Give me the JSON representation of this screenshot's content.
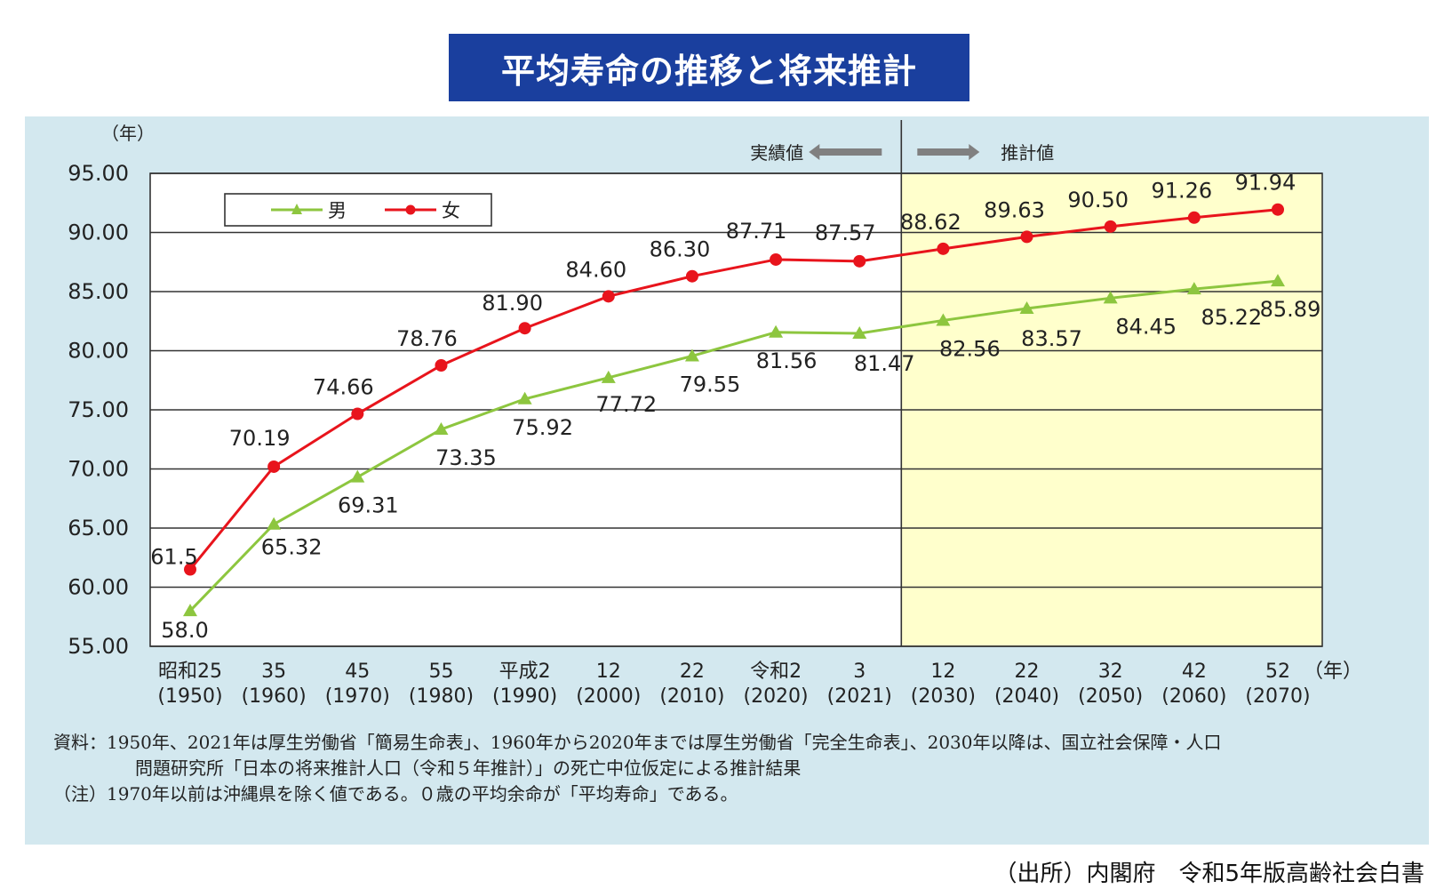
{
  "title": "平均寿命の推移と将来推計",
  "chart_data": {
    "type": "line",
    "ylabel": "（年）",
    "xunit": "（年）",
    "ylim": [
      55,
      95
    ],
    "yticks": [
      "95.00",
      "90.00",
      "85.00",
      "80.00",
      "75.00",
      "70.00",
      "65.00",
      "60.00",
      "55.00"
    ],
    "ytick_values": [
      95,
      90,
      85,
      80,
      75,
      70,
      65,
      60,
      55
    ],
    "categories": [
      [
        "昭和25",
        "(1950)"
      ],
      [
        "35",
        "(1960)"
      ],
      [
        "45",
        "(1970)"
      ],
      [
        "55",
        "(1980)"
      ],
      [
        "平成2",
        "(1990)"
      ],
      [
        "12",
        "(2000)"
      ],
      [
        "22",
        "(2010)"
      ],
      [
        "令和2",
        "(2020)"
      ],
      [
        "3",
        "(2021)"
      ],
      [
        "12",
        "(2030)"
      ],
      [
        "22",
        "(2040)"
      ],
      [
        "32",
        "(2050)"
      ],
      [
        "42",
        "(2060)"
      ],
      [
        "52",
        "(2070)"
      ]
    ],
    "legend_position": "top-left",
    "grid": true,
    "series": [
      {
        "name": "男",
        "color": "#8dc63f",
        "marker": "triangle",
        "values": [
          58.0,
          65.32,
          69.31,
          73.35,
          75.92,
          77.72,
          79.55,
          81.56,
          81.47,
          82.56,
          83.57,
          84.45,
          85.22,
          85.89
        ],
        "labels": [
          "58.0",
          "65.32",
          "69.31",
          "73.35",
          "75.92",
          "77.72",
          "79.55",
          "81.56",
          "81.47",
          "82.56",
          "83.57",
          "84.45",
          "85.22",
          "85.89"
        ]
      },
      {
        "name": "女",
        "color": "#e8141c",
        "marker": "circle",
        "values": [
          61.5,
          70.19,
          74.66,
          78.76,
          81.9,
          84.6,
          86.3,
          87.71,
          87.57,
          88.62,
          89.63,
          90.5,
          91.26,
          91.94
        ],
        "labels": [
          "61.5",
          "70.19",
          "74.66",
          "78.76",
          "81.90",
          "84.60",
          "86.30",
          "87.71",
          "87.57",
          "88.62",
          "89.63",
          "90.50",
          "91.26",
          "91.94"
        ]
      }
    ],
    "annotations": {
      "actual": "実績値",
      "projected": "推計値"
    },
    "projection_fill": "#ffffcc",
    "projection_starts_after_index": 8
  },
  "notes": [
    "資料：1950年、2021年は厚生労働省「簡易生命表」、1960年から2020年までは厚生労働省「完全生命表」、2030年以降は、国立社会保障・人口",
    "問題研究所「日本の将来推計人口（令和５年推計）」の死亡中位仮定による推計結果",
    "（注）1970年以前は沖縄県を除く値である。０歳の平均余命が「平均寿命」である。"
  ],
  "source": "（出所）内閣府　令和5年版高齢社会白書"
}
